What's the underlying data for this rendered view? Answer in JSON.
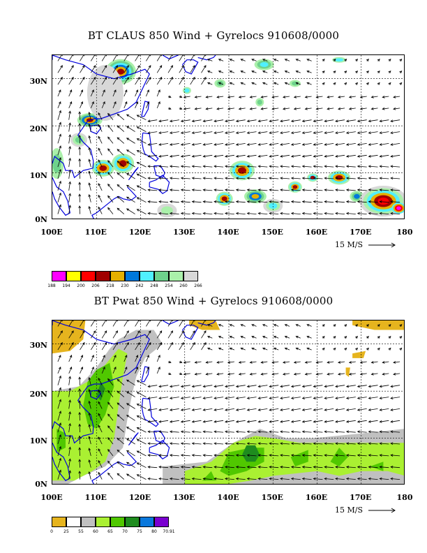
{
  "map1": {
    "title": "BT CLAUS 850 Wind + Gyrelocs 910608/0000",
    "x_labels": [
      "100E",
      "110E",
      "120E",
      "130E",
      "140E",
      "150E",
      "160E",
      "170E",
      "180"
    ],
    "y_labels": [
      "30N",
      "20N",
      "10N",
      "0N"
    ],
    "scale_label": "15 M/S",
    "legend_colors": [
      "#ff00ff",
      "#ffff00",
      "#ff0000",
      "#a00000",
      "#e6b000",
      "#0078dc",
      "#50f0ff",
      "#6ed28c",
      "#aaf0aa",
      "#d8d8d8"
    ],
    "legend_values": [
      "188",
      "194",
      "200",
      "206",
      "218",
      "230",
      "242",
      "248",
      "254",
      "260",
      "266"
    ]
  },
  "map2": {
    "title": "BT Pwat 850 Wind + Gyrelocs 910608/0000",
    "x_labels": [
      "100E",
      "110E",
      "120E",
      "130E",
      "140E",
      "150E",
      "160E",
      "170E",
      "180"
    ],
    "y_labels": [
      "30N",
      "20N",
      "10N",
      "0N"
    ],
    "scale_label": "15 M/S",
    "legend_colors": [
      "#e6b41e",
      "#ffffff",
      "#c0c0c0",
      "#aaf032",
      "#50c800",
      "#1e8c1e",
      "#0a78dc",
      "#7a00d0"
    ],
    "legend_values": [
      "0",
      "25",
      "55",
      "60",
      "65",
      "70",
      "75",
      "80",
      "70.91"
    ]
  }
}
